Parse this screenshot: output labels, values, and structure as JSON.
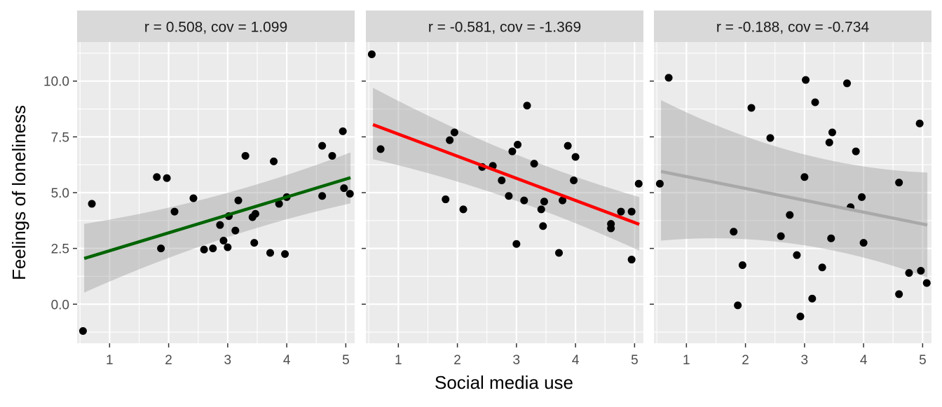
{
  "figure": {
    "xlabel": "Social media use",
    "ylabel": "Feelings of loneliness"
  },
  "chart_data": [
    {
      "type": "scatter",
      "title": "r = 0.508, cov = 1.099",
      "xlim": [
        0.45,
        5.15
      ],
      "ylim": [
        -1.75,
        11.75
      ],
      "x_ticks": [
        1,
        2,
        3,
        4,
        5
      ],
      "y_ticks": [
        0.0,
        2.5,
        5.0,
        7.5,
        10.0
      ],
      "x_tick_labels": [
        "1",
        "2",
        "3",
        "4",
        "5"
      ],
      "y_tick_labels": [
        "0.0",
        "2.5",
        "5.0",
        "7.5",
        "10.0"
      ],
      "grid": true,
      "fit": {
        "x": [
          0.57,
          5.08
        ],
        "y": [
          2.05,
          5.67
        ],
        "band_lower": [
          0.52,
          4.52
        ],
        "band_upper": [
          3.6,
          6.8
        ],
        "color": "#006400"
      },
      "points": [
        [
          0.55,
          -1.2
        ],
        [
          0.7,
          4.5
        ],
        [
          1.8,
          5.7
        ],
        [
          1.87,
          2.5
        ],
        [
          1.97,
          5.65
        ],
        [
          2.1,
          4.15
        ],
        [
          2.42,
          4.75
        ],
        [
          2.6,
          2.45
        ],
        [
          2.75,
          2.5
        ],
        [
          2.87,
          3.55
        ],
        [
          2.93,
          2.85
        ],
        [
          3.0,
          2.55
        ],
        [
          3.02,
          3.95
        ],
        [
          3.13,
          3.3
        ],
        [
          3.18,
          4.65
        ],
        [
          3.3,
          6.65
        ],
        [
          3.42,
          3.9
        ],
        [
          3.45,
          2.75
        ],
        [
          3.47,
          4.05
        ],
        [
          3.72,
          2.3
        ],
        [
          3.78,
          6.4
        ],
        [
          3.87,
          4.5
        ],
        [
          3.97,
          2.25
        ],
        [
          4.0,
          4.8
        ],
        [
          4.6,
          4.85
        ],
        [
          4.6,
          7.1
        ],
        [
          4.77,
          6.65
        ],
        [
          4.95,
          7.75
        ],
        [
          4.97,
          5.2
        ],
        [
          5.07,
          4.95
        ]
      ]
    },
    {
      "type": "scatter",
      "title": "r = -0.581, cov = -1.369",
      "xlim": [
        0.45,
        5.15
      ],
      "ylim": [
        -1.75,
        11.75
      ],
      "x_ticks": [
        1,
        2,
        3,
        4,
        5
      ],
      "y_ticks": [
        0.0,
        2.5,
        5.0,
        7.5,
        10.0
      ],
      "x_tick_labels": [
        "1",
        "2",
        "3",
        "4",
        "5"
      ],
      "y_tick_labels": [
        "0.0",
        "2.5",
        "5.0",
        "7.5",
        "10.0"
      ],
      "grid": true,
      "fit": {
        "x": [
          0.57,
          5.08
        ],
        "y": [
          8.05,
          3.58
        ],
        "band_lower": [
          6.5,
          2.4
        ],
        "band_upper": [
          9.7,
          4.8
        ],
        "color": "#ff0000"
      },
      "points": [
        [
          0.55,
          11.2
        ],
        [
          0.7,
          6.95
        ],
        [
          1.8,
          4.7
        ],
        [
          1.87,
          7.35
        ],
        [
          1.95,
          7.7
        ],
        [
          2.1,
          4.25
        ],
        [
          2.42,
          6.15
        ],
        [
          2.6,
          6.2
        ],
        [
          2.75,
          5.55
        ],
        [
          2.87,
          4.85
        ],
        [
          2.93,
          6.85
        ],
        [
          3.0,
          2.7
        ],
        [
          3.02,
          7.15
        ],
        [
          3.13,
          4.65
        ],
        [
          3.18,
          8.9
        ],
        [
          3.3,
          6.3
        ],
        [
          3.42,
          4.25
        ],
        [
          3.45,
          3.5
        ],
        [
          3.47,
          4.6
        ],
        [
          3.72,
          2.3
        ],
        [
          3.78,
          4.65
        ],
        [
          3.87,
          7.1
        ],
        [
          3.97,
          5.55
        ],
        [
          4.0,
          6.6
        ],
        [
          4.6,
          3.6
        ],
        [
          4.6,
          3.4
        ],
        [
          4.77,
          4.15
        ],
        [
          4.95,
          2.0
        ],
        [
          4.95,
          4.15
        ],
        [
          5.07,
          5.4
        ]
      ]
    },
    {
      "type": "scatter",
      "title": "r = -0.188, cov = -0.734",
      "xlim": [
        0.45,
        5.15
      ],
      "ylim": [
        -1.75,
        11.75
      ],
      "x_ticks": [
        1,
        2,
        3,
        4,
        5
      ],
      "y_ticks": [
        0.0,
        2.5,
        5.0,
        7.5,
        10.0
      ],
      "x_tick_labels": [
        "1",
        "2",
        "3",
        "4",
        "5"
      ],
      "y_tick_labels": [
        "0.0",
        "2.5",
        "5.0",
        "7.5",
        "10.0"
      ],
      "grid": true,
      "fit": {
        "x": [
          0.57,
          5.08
        ],
        "y": [
          5.95,
          3.55
        ],
        "band_lower": [
          2.85,
          1.2
        ],
        "band_upper": [
          9.15,
          5.9
        ],
        "color": "#a9a9a9"
      },
      "points": [
        [
          0.55,
          5.4
        ],
        [
          0.7,
          10.15
        ],
        [
          1.8,
          3.25
        ],
        [
          1.87,
          -0.05
        ],
        [
          1.95,
          1.75
        ],
        [
          2.1,
          8.8
        ],
        [
          2.42,
          7.45
        ],
        [
          2.6,
          3.05
        ],
        [
          2.75,
          4.0
        ],
        [
          2.87,
          2.2
        ],
        [
          2.93,
          -0.55
        ],
        [
          3.0,
          5.7
        ],
        [
          3.02,
          10.05
        ],
        [
          3.13,
          0.25
        ],
        [
          3.18,
          9.05
        ],
        [
          3.3,
          1.65
        ],
        [
          3.42,
          7.25
        ],
        [
          3.45,
          2.95
        ],
        [
          3.47,
          7.7
        ],
        [
          3.72,
          9.9
        ],
        [
          3.78,
          4.35
        ],
        [
          3.87,
          6.85
        ],
        [
          3.97,
          4.8
        ],
        [
          4.0,
          2.75
        ],
        [
          4.6,
          0.45
        ],
        [
          4.6,
          5.45
        ],
        [
          4.77,
          1.4
        ],
        [
          4.95,
          8.1
        ],
        [
          4.97,
          1.5
        ],
        [
          5.07,
          0.95
        ]
      ]
    }
  ]
}
